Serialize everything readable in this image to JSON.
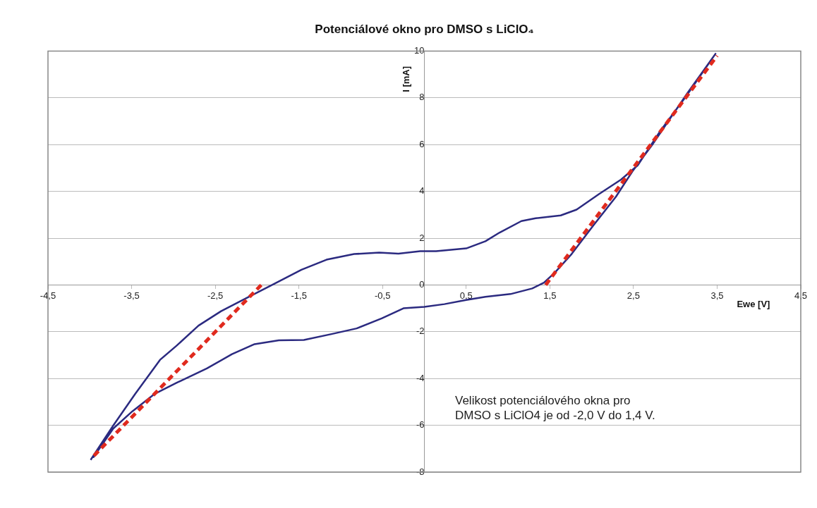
{
  "chart_data": {
    "type": "line",
    "title": "Potenciálové okno pro DMSO s LiClO₄",
    "xlabel": "Ewe [V]",
    "ylabel": "I [mA]",
    "xlim": [
      -4.5,
      4.5
    ],
    "ylim": [
      -8,
      10
    ],
    "xticks": [
      {
        "value": -4.5,
        "label": "-4,5"
      },
      {
        "value": -3.5,
        "label": "-3,5"
      },
      {
        "value": -2.5,
        "label": "-2,5"
      },
      {
        "value": -1.5,
        "label": "-1,5"
      },
      {
        "value": -0.5,
        "label": "-0,5"
      },
      {
        "value": 0.5,
        "label": "0,5"
      },
      {
        "value": 1.5,
        "label": "1,5"
      },
      {
        "value": 2.5,
        "label": "2,5"
      },
      {
        "value": 3.5,
        "label": "3,5"
      },
      {
        "value": 4.5,
        "label": "4,5"
      }
    ],
    "yticks": [
      -8,
      -6,
      -4,
      -2,
      0,
      2,
      4,
      6,
      8,
      10
    ],
    "grid": "y",
    "marker": "none",
    "legend": false,
    "annotations": [
      "Velikost potenciálového okna pro DMSO s LiClO4 je od -2,0 V do 1,4 V."
    ],
    "series": [
      {
        "color": "#2b2a80",
        "line_style": "solid",
        "x": [
          -3.99,
          -3.72,
          -3.46,
          -3.16,
          -2.96,
          -2.7,
          -2.43,
          -2.1,
          -1.8,
          -1.47,
          -1.17,
          -0.84,
          -0.54,
          -0.31,
          -0.05,
          0.14,
          0.5,
          0.73,
          0.9,
          1.16,
          1.33,
          1.63,
          1.82,
          2.09,
          2.35,
          2.55,
          2.82,
          3.15,
          3.48,
          3.15,
          2.72,
          2.49,
          2.29,
          2.02,
          1.76,
          1.56,
          1.43,
          1.29,
          1.03,
          0.73,
          0.5,
          0.24,
          0,
          -0.25,
          -0.51,
          -0.81,
          -1.11,
          -1.44,
          -1.74,
          -2.03,
          -2.3,
          -2.6,
          -2.96,
          -3.23,
          -3.49,
          -3.72,
          -3.96
        ],
        "values": [
          -7.48,
          -6.01,
          -4.67,
          -3.2,
          -2.59,
          -1.74,
          -1.12,
          -0.51,
          0.04,
          0.65,
          1.08,
          1.32,
          1.38,
          1.34,
          1.44,
          1.44,
          1.56,
          1.87,
          2.24,
          2.73,
          2.85,
          2.97,
          3.22,
          3.89,
          4.5,
          5.11,
          6.58,
          8.17,
          9.88,
          8.23,
          5.97,
          4.87,
          3.77,
          2.54,
          1.32,
          0.53,
          0.1,
          -0.15,
          -0.39,
          -0.51,
          -0.64,
          -0.82,
          -0.94,
          -1.0,
          -1.43,
          -1.86,
          -2.1,
          -2.35,
          -2.37,
          -2.53,
          -2.96,
          -3.57,
          -4.18,
          -4.67,
          -5.4,
          -6.14,
          -7.38
        ]
      },
      {
        "color": "#e02a1e",
        "line_style": "dashed",
        "x": [
          -3.95,
          -1.95
        ],
        "values": [
          -7.3,
          0
        ]
      },
      {
        "color": "#e02a1e",
        "line_style": "dashed",
        "x": [
          1.45,
          3.5
        ],
        "values": [
          0,
          9.8
        ]
      }
    ]
  }
}
